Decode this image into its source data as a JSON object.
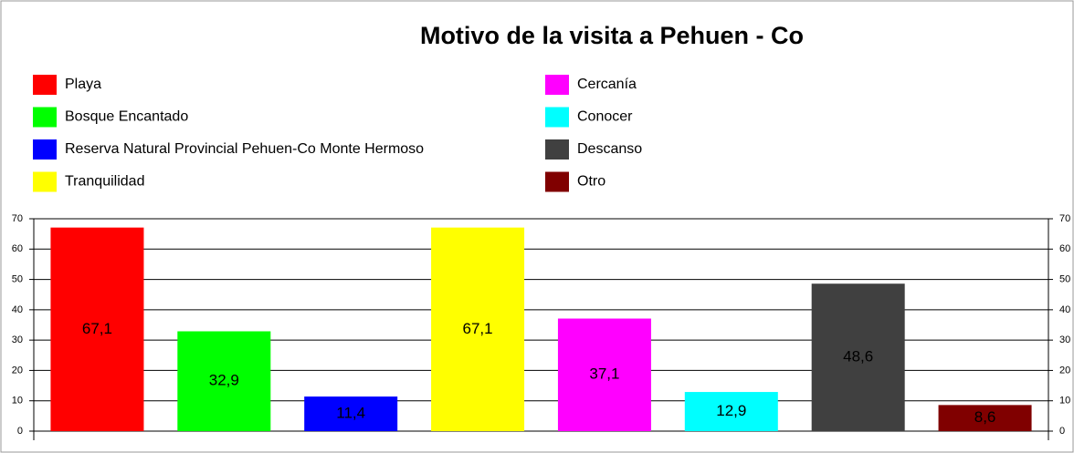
{
  "chart_data": {
    "type": "bar",
    "title": "Motivo de la visita a Pehuen - Co",
    "series": [
      {
        "name": "Playa",
        "color": "#ff0000",
        "values": [
          67.1
        ],
        "value_labels": [
          "67,1"
        ]
      },
      {
        "name": "Bosque Encantado",
        "color": "#00ff00",
        "values": [
          32.9
        ],
        "value_labels": [
          "32,9"
        ]
      },
      {
        "name": "Reserva Natural Provincial Pehuen-Co Monte Hermoso",
        "color": "#0000ff",
        "values": [
          11.4
        ],
        "value_labels": [
          "11,4"
        ]
      },
      {
        "name": "Tranquilidad",
        "color": "#ffff00",
        "values": [
          67.1
        ],
        "value_labels": [
          "67,1"
        ]
      },
      {
        "name": "Cercanía",
        "color": "#ff00ff",
        "values": [
          37.1
        ],
        "value_labels": [
          "37,1"
        ]
      },
      {
        "name": "Conocer",
        "color": "#00ffff",
        "values": [
          12.9
        ],
        "value_labels": [
          "12,9"
        ]
      },
      {
        "name": "Descanso",
        "color": "#404040",
        "values": [
          48.6
        ],
        "value_labels": [
          "48,6"
        ]
      },
      {
        "name": "Otro",
        "color": "#800000",
        "values": [
          8.6
        ],
        "value_labels": [
          "8,6"
        ]
      }
    ],
    "ylim": [
      0,
      70
    ],
    "yticks": [
      0,
      10,
      20,
      30,
      40,
      50,
      60,
      70
    ],
    "grid": true,
    "legend": "top"
  }
}
